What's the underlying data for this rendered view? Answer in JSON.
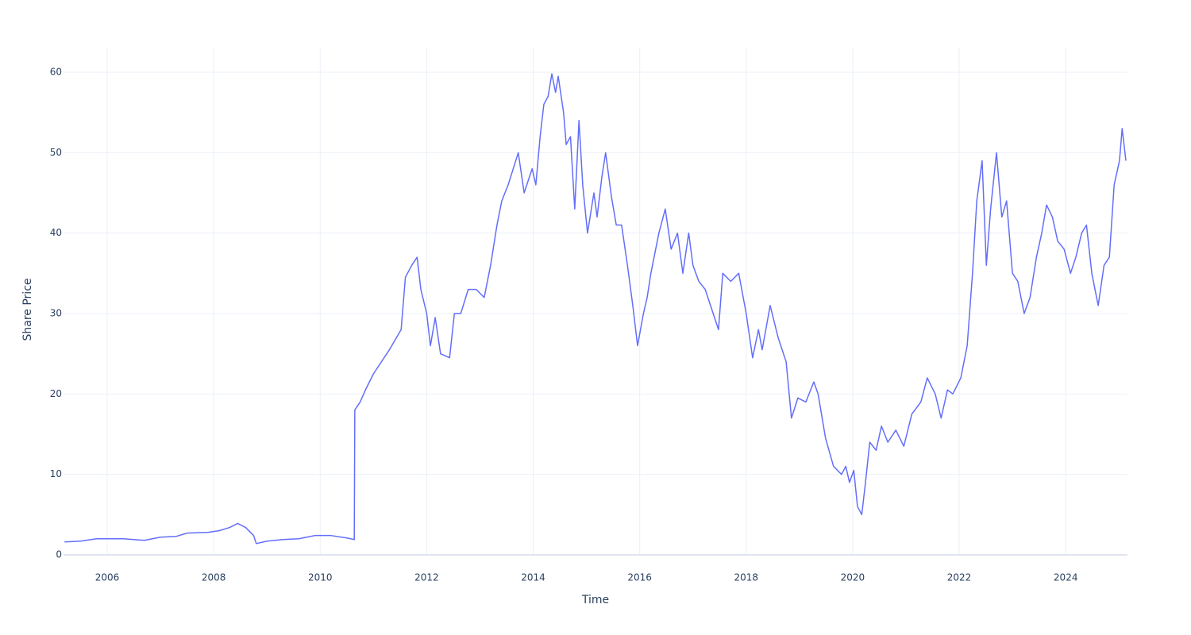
{
  "chart_data": {
    "type": "line",
    "x_label": "Time",
    "y_label": "Share Price",
    "color": "#636efa",
    "grid": true,
    "xlim": [
      2005.18,
      2025.16
    ],
    "xticks": [
      2006,
      2008,
      2010,
      2012,
      2014,
      2016,
      2018,
      2020,
      2022,
      2024
    ],
    "ylim": [
      0,
      63
    ],
    "yticks": [
      0,
      10,
      20,
      30,
      40,
      50,
      60
    ],
    "x": [
      2005.2,
      2005.5,
      2005.8,
      2006.3,
      2006.7,
      2007.0,
      2007.3,
      2007.5,
      2007.9,
      2008.1,
      2008.3,
      2008.45,
      2008.6,
      2008.75,
      2008.8,
      2009.0,
      2009.3,
      2009.6,
      2009.9,
      2010.2,
      2010.5,
      2010.64,
      2010.65,
      2010.75,
      2010.85,
      2011.0,
      2011.3,
      2011.52,
      2011.6,
      2011.72,
      2011.82,
      2011.89,
      2012.0,
      2012.07,
      2012.16,
      2012.26,
      2012.43,
      2012.52,
      2012.64,
      2012.78,
      2012.93,
      2013.08,
      2013.2,
      2013.32,
      2013.41,
      2013.53,
      2013.72,
      2013.83,
      2013.98,
      2014.05,
      2014.13,
      2014.2,
      2014.28,
      2014.35,
      2014.42,
      2014.47,
      2014.57,
      2014.62,
      2014.7,
      2014.78,
      2014.86,
      2014.93,
      2015.02,
      2015.14,
      2015.2,
      2015.29,
      2015.36,
      2015.47,
      2015.56,
      2015.66,
      2015.77,
      2015.87,
      2015.96,
      2016.07,
      2016.14,
      2016.21,
      2016.36,
      2016.48,
      2016.59,
      2016.71,
      2016.81,
      2016.92,
      2017.0,
      2017.11,
      2017.23,
      2017.33,
      2017.48,
      2017.56,
      2017.71,
      2017.86,
      2018.0,
      2018.12,
      2018.23,
      2018.3,
      2018.45,
      2018.6,
      2018.75,
      2018.85,
      2018.97,
      2019.12,
      2019.27,
      2019.35,
      2019.49,
      2019.64,
      2019.79,
      2019.87,
      2019.94,
      2020.02,
      2020.09,
      2020.17,
      2020.24,
      2020.32,
      2020.44,
      2020.54,
      2020.66,
      2020.81,
      2020.96,
      2021.11,
      2021.28,
      2021.4,
      2021.55,
      2021.66,
      2021.78,
      2021.88,
      2022.03,
      2022.15,
      2022.25,
      2022.33,
      2022.43,
      2022.51,
      2022.59,
      2022.7,
      2022.8,
      2022.89,
      2023.0,
      2023.1,
      2023.22,
      2023.33,
      2023.45,
      2023.55,
      2023.64,
      2023.75,
      2023.85,
      2023.97,
      2024.09,
      2024.19,
      2024.3,
      2024.39,
      2024.49,
      2024.61,
      2024.72,
      2024.82,
      2024.91,
      2025.01,
      2025.06,
      2025.13
    ],
    "values": [
      1.6,
      1.7,
      2.0,
      2.0,
      1.8,
      2.2,
      2.3,
      2.7,
      2.8,
      3.0,
      3.4,
      3.9,
      3.4,
      2.4,
      1.4,
      1.7,
      1.9,
      2.0,
      2.4,
      2.4,
      2.1,
      1.9,
      18.0,
      19.0,
      20.5,
      22.5,
      25.5,
      28,
      34.5,
      36,
      37,
      33,
      30,
      26,
      29.5,
      25,
      24.5,
      30,
      30,
      33,
      33,
      32,
      36,
      41,
      44,
      46,
      50,
      45,
      48,
      46,
      52,
      56,
      57,
      59.8,
      57.5,
      59.5,
      55,
      51,
      52,
      43,
      54,
      46,
      40,
      45,
      42,
      47,
      50,
      44.5,
      41,
      41,
      36,
      31,
      26,
      30,
      32,
      35,
      40,
      43,
      38,
      40,
      35,
      40,
      36,
      34,
      33,
      31,
      28,
      35,
      34,
      35,
      30,
      24.5,
      28,
      25.5,
      31,
      27,
      24,
      17,
      19.5,
      19,
      21.5,
      20,
      14.5,
      11,
      10,
      11,
      9,
      10.5,
      6,
      5,
      9,
      14,
      13,
      16,
      14,
      15.5,
      13.5,
      17.5,
      19,
      22,
      20,
      17,
      20.5,
      20,
      22,
      26,
      35,
      44,
      49,
      36,
      43,
      50,
      42,
      44,
      35,
      34,
      30,
      32,
      37,
      40,
      43.5,
      42,
      39,
      38,
      35,
      37,
      40,
      41,
      35,
      31,
      36,
      37,
      46,
      49,
      53,
      49
    ]
  }
}
